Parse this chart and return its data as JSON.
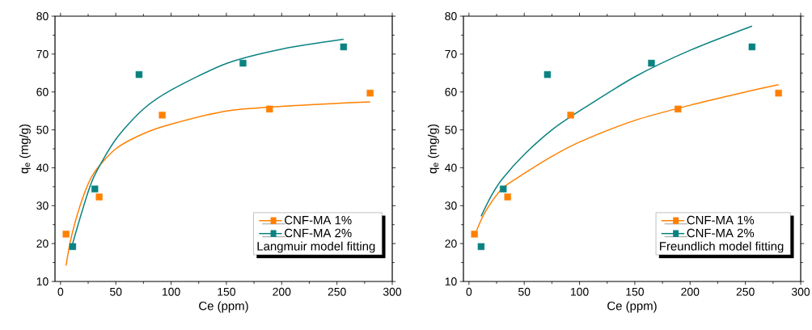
{
  "chart_data": [
    {
      "type": "scatter",
      "xlabel": "Ce (ppm)",
      "ylabel": "q$_{e}$ (mg/g)",
      "xlim": [
        -5,
        300
      ],
      "ylim": [
        10,
        80
      ],
      "xticks": [
        0,
        50,
        100,
        150,
        200,
        250,
        300
      ],
      "yticks": [
        10,
        20,
        30,
        40,
        50,
        60,
        70,
        80
      ],
      "legend": "bottom right",
      "legend_title": "Langmuir model fitting",
      "series": [
        {
          "name": "CNF-MA 1%",
          "marker": "square",
          "color": "#ff8000",
          "x": [
            5,
            35,
            92,
            189,
            280
          ],
          "values": [
            22.5,
            32.3,
            53.9,
            55.5,
            59.7
          ]
        },
        {
          "name": "CNF-MA 2%",
          "marker": "square",
          "color": "#0b8282",
          "x": [
            11,
            31,
            71,
            165,
            256
          ],
          "values": [
            19.2,
            34.4,
            64.6,
            67.6,
            71.9
          ]
        },
        {
          "type": "line",
          "marker": "none",
          "color": "#ff8000",
          "x": [
            5,
            10,
            20,
            30,
            50,
            75,
            100,
            150,
            200,
            250,
            280
          ],
          "values": [
            14.2,
            22,
            32,
            38.5,
            45,
            49,
            51.5,
            55,
            56.2,
            57,
            57.4
          ]
        },
        {
          "type": "line",
          "marker": "none",
          "color": "#0b8282",
          "x": [
            10,
            20,
            30,
            50,
            75,
            100,
            150,
            200,
            256
          ],
          "values": [
            19,
            29,
            37.5,
            47.5,
            55.5,
            60.5,
            67.5,
            71.3,
            73.9
          ]
        }
      ]
    },
    {
      "type": "scatter",
      "xlabel": "Ce (ppm)",
      "ylabel": "q$_{e}$ (mg/g)",
      "xlim": [
        -5,
        300
      ],
      "ylim": [
        10,
        80
      ],
      "xticks": [
        0,
        50,
        100,
        150,
        200,
        250,
        300
      ],
      "yticks": [
        10,
        20,
        30,
        40,
        50,
        60,
        70,
        80
      ],
      "legend": "bottom right",
      "legend_title": "Freundlich model fitting",
      "series": [
        {
          "name": "CNF-MA 1%",
          "marker": "square",
          "color": "#ff8000",
          "x": [
            5,
            35,
            92,
            189,
            280
          ],
          "values": [
            22.5,
            32.3,
            53.9,
            55.5,
            59.7
          ]
        },
        {
          "name": "CNF-MA 2%",
          "marker": "square",
          "color": "#0b8282",
          "x": [
            11,
            31,
            71,
            165,
            256
          ],
          "values": [
            19.2,
            34.4,
            64.6,
            67.6,
            71.9
          ]
        },
        {
          "type": "line",
          "marker": "none",
          "color": "#ff8000",
          "x": [
            7,
            15,
            30,
            50,
            75,
            100,
            150,
            200,
            250,
            280
          ],
          "values": [
            23.5,
            28.5,
            34.5,
            38.5,
            43,
            46.8,
            52.5,
            56.5,
            60,
            61.9
          ]
        },
        {
          "type": "line",
          "marker": "none",
          "color": "#0b8282",
          "x": [
            11,
            20,
            30,
            50,
            75,
            100,
            150,
            200,
            256
          ],
          "values": [
            27.2,
            32.5,
            37,
            43.5,
            50,
            55,
            64,
            71,
            77.4
          ]
        }
      ]
    }
  ]
}
